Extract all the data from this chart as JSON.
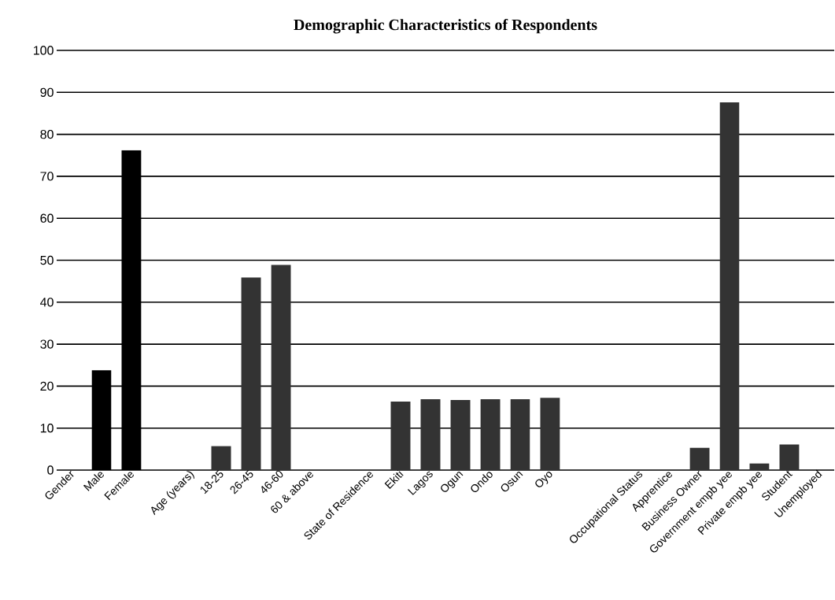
{
  "chart_data": {
    "type": "bar",
    "title": "Demographic Characteristics of Respondents",
    "categories": [
      "Gender",
      "Male",
      "Female",
      null,
      "Age (years)",
      "18-25",
      "26-45",
      "46-60",
      "60 & above",
      null,
      "State of Residence",
      "Ekiti",
      "Lagos",
      "Ogun",
      "Ondo",
      "Osun",
      "Oyo",
      null,
      null,
      "Occupational Status",
      "Apprentice",
      "Business Owner",
      "Government empb yee",
      "Private empb yee",
      "Student",
      "Unemployed"
    ],
    "values": [
      null,
      23.8,
      76.2,
      null,
      null,
      5.7,
      45.9,
      48.9,
      null,
      null,
      null,
      16.3,
      16.9,
      16.7,
      16.9,
      16.9,
      17.2,
      null,
      null,
      null,
      null,
      5.3,
      87.6,
      1.6,
      6.1,
      null
    ],
    "colors": [
      "#000000",
      "#000000",
      "#000000",
      "#333333",
      "#333333",
      "#333333",
      "#333333",
      "#333333",
      "#333333",
      "#333333",
      "#333333",
      "#333333",
      "#333333",
      "#333333",
      "#333333",
      "#333333",
      "#333333",
      "#333333",
      "#333333",
      "#333333",
      "#333333",
      "#333333",
      "#333333",
      "#333333",
      "#333333",
      "#333333"
    ],
    "ylim": [
      0,
      100
    ],
    "yticks": [
      0,
      10,
      20,
      30,
      40,
      50,
      60,
      70,
      80,
      90,
      100
    ],
    "grid": "y"
  }
}
